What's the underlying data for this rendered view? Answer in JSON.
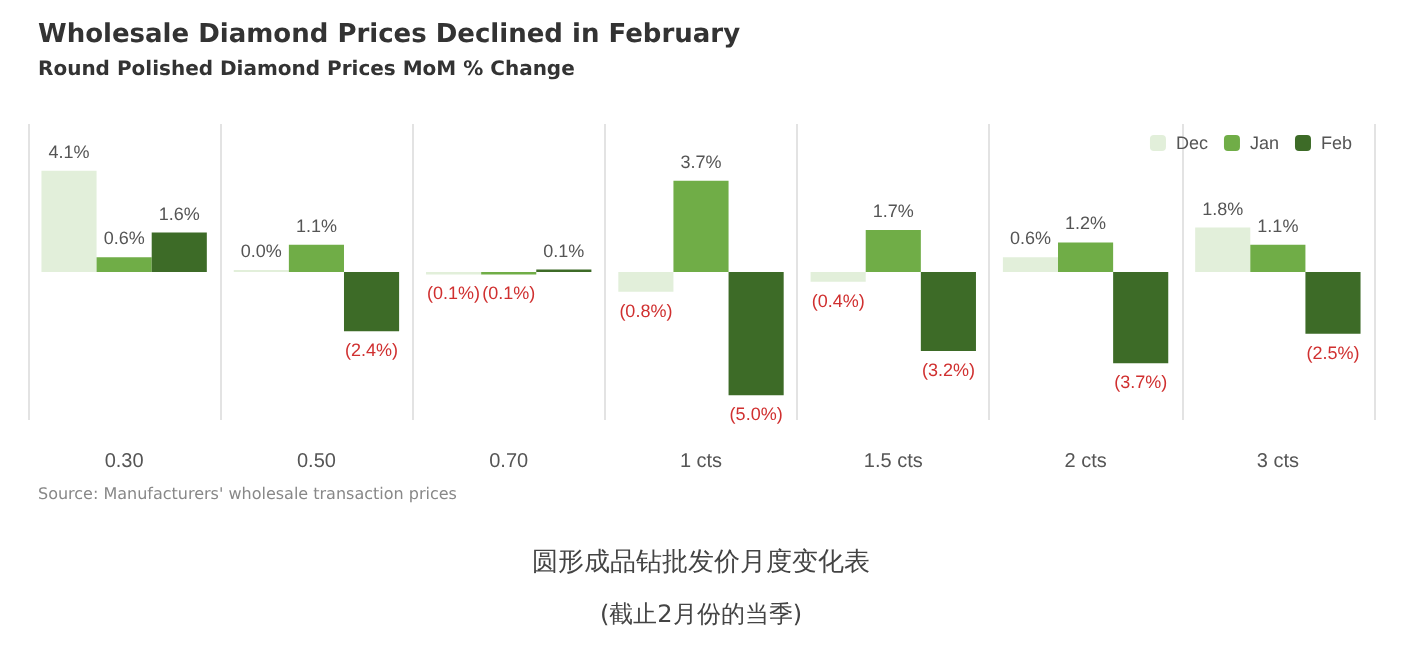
{
  "chart_data": {
    "type": "bar",
    "title": "Wholesale Diamond Prices Declined in February",
    "subtitle": "Round Polished Diamond Prices MoM % Change",
    "categories": [
      "0.30",
      "0.50",
      "0.70",
      "1 cts",
      "1.5 cts",
      "2 cts",
      "3 cts"
    ],
    "series": [
      {
        "name": "Dec",
        "color": "#e2efda",
        "values": [
          4.1,
          0.0,
          -0.1,
          -0.8,
          -0.4,
          0.6,
          1.8
        ],
        "value_labels": [
          "4.1%",
          "0.0%",
          "(0.1%)",
          "(0.8%)",
          "(0.4%)",
          "0.6%",
          "1.8%"
        ]
      },
      {
        "name": "Jan",
        "color": "#70ad47",
        "values": [
          0.6,
          1.1,
          -0.1,
          3.7,
          1.7,
          1.2,
          1.1
        ],
        "value_labels": [
          "0.6%",
          "1.1%",
          "(0.1%)",
          "3.7%",
          "1.7%",
          "1.2%",
          "1.1%"
        ]
      },
      {
        "name": "Feb",
        "color": "#3d6b27",
        "values": [
          1.6,
          -2.4,
          0.1,
          -5.0,
          -3.2,
          -3.7,
          -2.5
        ],
        "value_labels": [
          "1.6%",
          "(2.4%)",
          "0.1%",
          "(5.0%)",
          "(3.2%)",
          "(3.7%)",
          "(2.5%)"
        ]
      }
    ],
    "grid": "x",
    "legend": "top right",
    "tick_labels": "x",
    "annotations": [
      "Source: Manufacturers' wholesale transaction prices",
      "圆形成品钻批发价月度变化表",
      "(截止2月份的当季)"
    ]
  }
}
